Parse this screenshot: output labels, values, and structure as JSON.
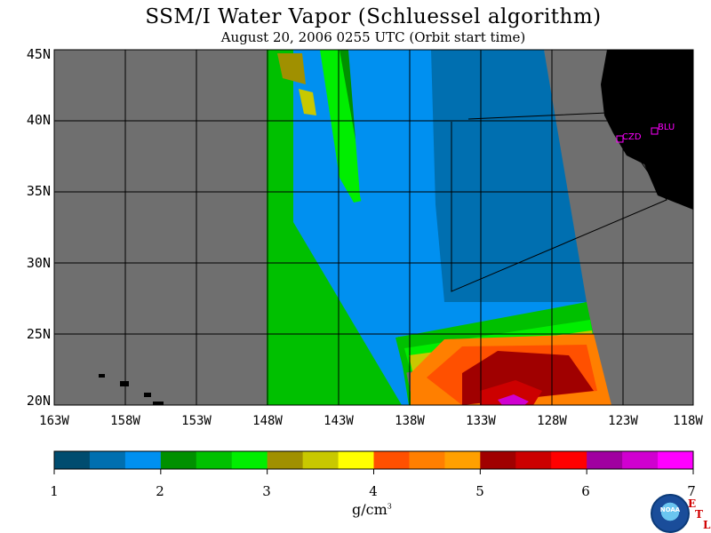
{
  "title": "SSM/I Water Vapor (Schluessel algorithm)",
  "subtitle": "August 20, 2006  0255 UTC  (Orbit start time)",
  "map": {
    "lat_labels": [
      "45N",
      "40N",
      "35N",
      "30N",
      "25N",
      "20N"
    ],
    "lon_labels": [
      "163W",
      "158W",
      "153W",
      "148W",
      "143W",
      "138W",
      "133W",
      "128W",
      "123W",
      "118W"
    ],
    "stations": [
      {
        "label": "CZD"
      },
      {
        "label": "BLU"
      }
    ],
    "colors": {
      "no_data": "#6f6f6f",
      "land": "#000000",
      "station": "#ff00ff"
    }
  },
  "colorbar": {
    "colors": [
      "#004c6f",
      "#006fb0",
      "#0090f0",
      "#009000",
      "#00c000",
      "#00ee00",
      "#a09000",
      "#c8c800",
      "#ffff00",
      "#ff5000",
      "#ff7f00",
      "#ffa000",
      "#a00000",
      "#cc0000",
      "#ff0000",
      "#a000a0",
      "#d000d0",
      "#ff00ff"
    ],
    "labels": [
      "1",
      "2",
      "3",
      "4",
      "5",
      "6",
      "7"
    ],
    "units": "g/cm"
  },
  "logo": {
    "text": "NOAA",
    "etl": [
      "E",
      "T",
      "L"
    ]
  }
}
